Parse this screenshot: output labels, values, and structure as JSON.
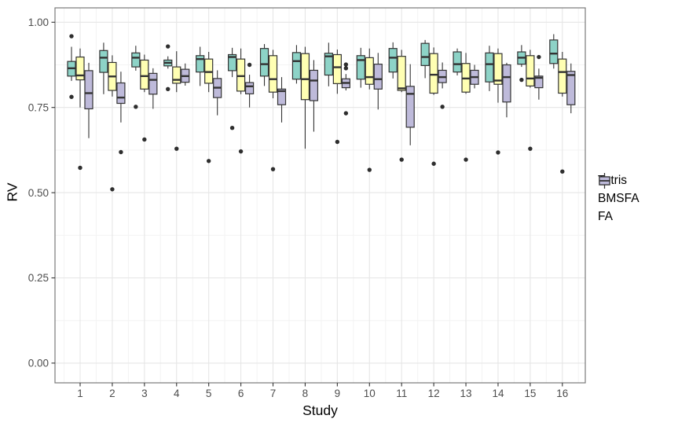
{
  "chart_data": {
    "type": "boxplot",
    "title": "",
    "xlabel": "Study",
    "ylabel": "RV",
    "categories": [
      "1",
      "2",
      "3",
      "4",
      "5",
      "6",
      "7",
      "8",
      "9",
      "10",
      "11",
      "12",
      "13",
      "14",
      "15",
      "16"
    ],
    "y_axis": {
      "major_ticks": [
        1.0,
        0.75,
        0.5,
        0.25,
        0.0
      ],
      "tick_labels": [
        "1.00",
        "0.75",
        "0.50",
        "0.25",
        "0.00"
      ],
      "minor_ticks": [
        0.875,
        0.625,
        0.375,
        0.125
      ],
      "ylim": [
        0.0,
        1.0
      ]
    },
    "grid": {
      "on": true,
      "major_color": "#E6E6E6",
      "minor_color": "#F3F3F3"
    },
    "panel": {
      "background": "#FFFFFF",
      "border_color": "#7A7A7A"
    },
    "style": {
      "box_stroke": "#333333",
      "outlier_color": "#2E2E2E",
      "tick_color": "#333333",
      "tick_label_color": "#4D4D4D"
    },
    "legend": {
      "position": "right",
      "entries": [
        "Tetris",
        "BMSFA",
        "FA"
      ]
    },
    "series": [
      {
        "name": "Tetris",
        "fill": "#8DD3C7",
        "boxes": [
          {
            "study": "1",
            "low": 0.828,
            "q1": 0.842,
            "median": 0.865,
            "q3": 0.885,
            "high": 0.928,
            "outliers": [
              0.959,
              0.781
            ]
          },
          {
            "study": "2",
            "low": 0.789,
            "q1": 0.853,
            "median": 0.896,
            "q3": 0.917,
            "high": 0.94,
            "outliers": []
          },
          {
            "study": "3",
            "low": 0.858,
            "q1": 0.869,
            "median": 0.896,
            "q3": 0.91,
            "high": 0.931,
            "outliers": [
              0.752
            ]
          },
          {
            "study": "4",
            "low": 0.864,
            "q1": 0.872,
            "median": 0.881,
            "q3": 0.889,
            "high": 0.9,
            "outliers": [
              0.929,
              0.804
            ]
          },
          {
            "study": "5",
            "low": 0.813,
            "q1": 0.854,
            "median": 0.892,
            "q3": 0.902,
            "high": 0.928,
            "outliers": []
          },
          {
            "study": "6",
            "low": 0.839,
            "q1": 0.858,
            "median": 0.898,
            "q3": 0.905,
            "high": 0.925,
            "outliers": [
              0.69
            ]
          },
          {
            "study": "7",
            "low": 0.813,
            "q1": 0.842,
            "median": 0.877,
            "q3": 0.923,
            "high": 0.936,
            "outliers": []
          },
          {
            "study": "8",
            "low": 0.82,
            "q1": 0.833,
            "median": 0.886,
            "q3": 0.911,
            "high": 0.933,
            "outliers": []
          },
          {
            "study": "9",
            "low": 0.812,
            "q1": 0.845,
            "median": 0.9,
            "q3": 0.909,
            "high": 0.94,
            "outliers": []
          },
          {
            "study": "10",
            "low": 0.808,
            "q1": 0.833,
            "median": 0.889,
            "q3": 0.902,
            "high": 0.925,
            "outliers": []
          },
          {
            "study": "11",
            "low": 0.835,
            "q1": 0.854,
            "median": 0.896,
            "q3": 0.923,
            "high": 0.941,
            "outliers": []
          },
          {
            "study": "12",
            "low": 0.836,
            "q1": 0.873,
            "median": 0.898,
            "q3": 0.938,
            "high": 0.948,
            "outliers": []
          },
          {
            "study": "13",
            "low": 0.844,
            "q1": 0.854,
            "median": 0.877,
            "q3": 0.913,
            "high": 0.923,
            "outliers": []
          },
          {
            "study": "14",
            "low": 0.798,
            "q1": 0.825,
            "median": 0.877,
            "q3": 0.91,
            "high": 0.931,
            "outliers": []
          },
          {
            "study": "15",
            "low": 0.869,
            "q1": 0.877,
            "median": 0.896,
            "q3": 0.913,
            "high": 0.933,
            "outliers": [
              0.831
            ]
          },
          {
            "study": "16",
            "low": 0.864,
            "q1": 0.879,
            "median": 0.908,
            "q3": 0.948,
            "high": 0.965,
            "outliers": []
          }
        ]
      },
      {
        "name": "BMSFA",
        "fill": "#FFFFB3",
        "boxes": [
          {
            "study": "1",
            "low": 0.75,
            "q1": 0.831,
            "median": 0.844,
            "q3": 0.898,
            "high": 0.923,
            "outliers": [
              0.573
            ]
          },
          {
            "study": "2",
            "low": 0.782,
            "q1": 0.8,
            "median": 0.841,
            "q3": 0.882,
            "high": 0.903,
            "outliers": [
              0.51
            ]
          },
          {
            "study": "3",
            "low": 0.795,
            "q1": 0.804,
            "median": 0.842,
            "q3": 0.889,
            "high": 0.905,
            "outliers": [
              0.656
            ]
          },
          {
            "study": "4",
            "low": 0.795,
            "q1": 0.821,
            "median": 0.831,
            "q3": 0.869,
            "high": 0.915,
            "outliers": [
              0.629
            ]
          },
          {
            "study": "5",
            "low": 0.795,
            "q1": 0.821,
            "median": 0.854,
            "q3": 0.892,
            "high": 0.913,
            "outliers": [
              0.593
            ]
          },
          {
            "study": "6",
            "low": 0.789,
            "q1": 0.798,
            "median": 0.842,
            "q3": 0.892,
            "high": 0.923,
            "outliers": [
              0.621
            ]
          },
          {
            "study": "7",
            "low": 0.777,
            "q1": 0.795,
            "median": 0.833,
            "q3": 0.902,
            "high": 0.919,
            "outliers": [
              0.569
            ]
          },
          {
            "study": "8",
            "low": 0.629,
            "q1": 0.773,
            "median": 0.833,
            "q3": 0.908,
            "high": 0.928,
            "outliers": []
          },
          {
            "study": "9",
            "low": 0.79,
            "q1": 0.82,
            "median": 0.868,
            "q3": 0.905,
            "high": 0.92,
            "outliers": [
              0.649
            ]
          },
          {
            "study": "10",
            "low": 0.803,
            "q1": 0.818,
            "median": 0.839,
            "q3": 0.896,
            "high": 0.923,
            "outliers": [
              0.567
            ]
          },
          {
            "study": "11",
            "low": 0.795,
            "q1": 0.8,
            "median": 0.806,
            "q3": 0.9,
            "high": 0.919,
            "outliers": [
              0.597
            ]
          },
          {
            "study": "12",
            "low": 0.787,
            "q1": 0.792,
            "median": 0.846,
            "q3": 0.908,
            "high": 0.926,
            "outliers": [
              0.585
            ]
          },
          {
            "study": "13",
            "low": 0.79,
            "q1": 0.795,
            "median": 0.835,
            "q3": 0.879,
            "high": 0.91,
            "outliers": [
              0.597
            ]
          },
          {
            "study": "14",
            "low": 0.764,
            "q1": 0.818,
            "median": 0.829,
            "q3": 0.908,
            "high": 0.923,
            "outliers": [
              0.618
            ]
          },
          {
            "study": "15",
            "low": 0.808,
            "q1": 0.813,
            "median": 0.835,
            "q3": 0.902,
            "high": 0.919,
            "outliers": [
              0.629
            ]
          },
          {
            "study": "16",
            "low": 0.782,
            "q1": 0.792,
            "median": 0.854,
            "q3": 0.892,
            "high": 0.913,
            "outliers": [
              0.562
            ]
          }
        ]
      },
      {
        "name": "FA",
        "fill": "#BEBADA",
        "boxes": [
          {
            "study": "1",
            "low": 0.66,
            "q1": 0.746,
            "median": 0.792,
            "q3": 0.858,
            "high": 0.881,
            "outliers": []
          },
          {
            "study": "2",
            "low": 0.706,
            "q1": 0.762,
            "median": 0.779,
            "q3": 0.822,
            "high": 0.855,
            "outliers": [
              0.619
            ]
          },
          {
            "study": "3",
            "low": 0.746,
            "q1": 0.789,
            "median": 0.831,
            "q3": 0.85,
            "high": 0.865,
            "outliers": []
          },
          {
            "study": "4",
            "low": 0.814,
            "q1": 0.824,
            "median": 0.842,
            "q3": 0.862,
            "high": 0.879,
            "outliers": []
          },
          {
            "study": "5",
            "low": 0.727,
            "q1": 0.779,
            "median": 0.808,
            "q3": 0.835,
            "high": 0.859,
            "outliers": []
          },
          {
            "study": "6",
            "low": 0.75,
            "q1": 0.79,
            "median": 0.812,
            "q3": 0.823,
            "high": 0.846,
            "outliers": [
              0.875
            ]
          },
          {
            "study": "7",
            "low": 0.706,
            "q1": 0.758,
            "median": 0.798,
            "q3": 0.804,
            "high": 0.839,
            "outliers": []
          },
          {
            "study": "8",
            "low": 0.679,
            "q1": 0.77,
            "median": 0.829,
            "q3": 0.859,
            "high": 0.889,
            "outliers": []
          },
          {
            "study": "9",
            "low": 0.8,
            "q1": 0.808,
            "median": 0.822,
            "q3": 0.834,
            "high": 0.848,
            "outliers": [
              0.876,
              0.865,
              0.733
            ]
          },
          {
            "study": "10",
            "low": 0.744,
            "q1": 0.804,
            "median": 0.833,
            "q3": 0.877,
            "high": 0.91,
            "outliers": []
          },
          {
            "study": "11",
            "low": 0.639,
            "q1": 0.692,
            "median": 0.79,
            "q3": 0.812,
            "high": 0.877,
            "outliers": []
          },
          {
            "study": "12",
            "low": 0.806,
            "q1": 0.823,
            "median": 0.839,
            "q3": 0.859,
            "high": 0.882,
            "outliers": [
              0.752
            ]
          },
          {
            "study": "13",
            "low": 0.806,
            "q1": 0.818,
            "median": 0.839,
            "q3": 0.859,
            "high": 0.875,
            "outliers": []
          },
          {
            "study": "14",
            "low": 0.721,
            "q1": 0.766,
            "median": 0.839,
            "q3": 0.875,
            "high": 0.881,
            "outliers": []
          },
          {
            "study": "15",
            "low": 0.773,
            "q1": 0.808,
            "median": 0.837,
            "q3": 0.842,
            "high": 0.864,
            "outliers": [
              0.898
            ]
          },
          {
            "study": "16",
            "low": 0.733,
            "q1": 0.758,
            "median": 0.845,
            "q3": 0.856,
            "high": 0.879,
            "outliers": []
          }
        ]
      }
    ]
  }
}
